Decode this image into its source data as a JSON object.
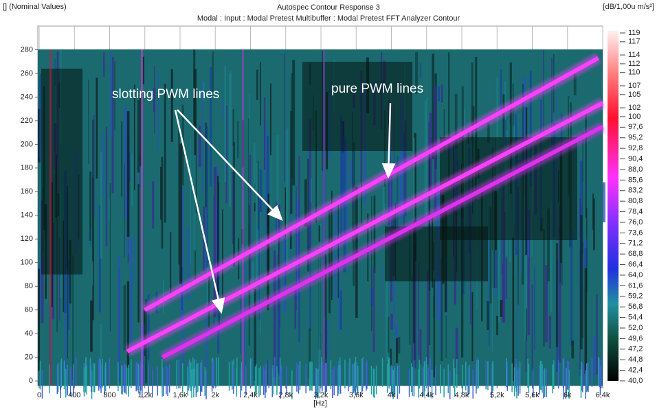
{
  "chart_data": {
    "type": "contour",
    "title": "Autospec Contour Response 3",
    "subtitle": "Modal : Input : Modal Pretest Multibuffer : Modal Pretest FFT Analyzer Contour",
    "y_label": "[] (Nominal Values)",
    "x_label": "[Hz]",
    "colorbar_label": "[dB/1,00u m/s²]",
    "xlim": [
      0,
      6400
    ],
    "ylim": [
      -4,
      300
    ],
    "xticks": [
      0,
      400,
      800,
      {
        "value": 1200,
        "label": "1,2k"
      },
      {
        "value": 1600,
        "label": "1,6k"
      },
      {
        "value": 2000,
        "label": "2k"
      },
      {
        "value": 2400,
        "label": "2,4k"
      },
      {
        "value": 2800,
        "label": "2,8k"
      },
      {
        "value": 3200,
        "label": "3,2k"
      },
      {
        "value": 3600,
        "label": "3,6k"
      },
      {
        "value": 4000,
        "label": "4k"
      },
      {
        "value": 4400,
        "label": "4,4k"
      },
      {
        "value": 4800,
        "label": "4,8k"
      },
      {
        "value": 5200,
        "label": "5,2k"
      },
      {
        "value": 5600,
        "label": "5,6k"
      },
      {
        "value": 6000,
        "label": "6k"
      },
      {
        "value": 6400,
        "label": "6,4k"
      }
    ],
    "yticks": [
      0,
      20,
      40,
      60,
      80,
      100,
      120,
      140,
      160,
      180,
      200,
      220,
      240,
      260,
      280
    ],
    "clim": [
      40,
      119
    ],
    "cticks": [
      119,
      117,
      114,
      112,
      110,
      107,
      105,
      102,
      100,
      {
        "value": 97.6,
        "label": "97,6"
      },
      {
        "value": 95.2,
        "label": "95,2"
      },
      {
        "value": 92.8,
        "label": "92,8"
      },
      {
        "value": 90.4,
        "label": "90,4"
      },
      {
        "value": 88.0,
        "label": "88,0"
      },
      {
        "value": 85.6,
        "label": "85,6"
      },
      {
        "value": 83.2,
        "label": "83,2"
      },
      {
        "value": 80.8,
        "label": "80,8"
      },
      {
        "value": 78.4,
        "label": "78,4"
      },
      {
        "value": 76.0,
        "label": "76,0"
      },
      {
        "value": 73.6,
        "label": "73,6"
      },
      {
        "value": 71.2,
        "label": "71,2"
      },
      {
        "value": 68.8,
        "label": "68,8"
      },
      {
        "value": 66.4,
        "label": "66,4"
      },
      {
        "value": 64.0,
        "label": "64,0"
      },
      {
        "value": 61.6,
        "label": "61,6"
      },
      {
        "value": 59.2,
        "label": "59,2"
      },
      {
        "value": 56.8,
        "label": "56,8"
      },
      {
        "value": 54.4,
        "label": "54,4"
      },
      {
        "value": 52.0,
        "label": "52,0"
      },
      {
        "value": 49.6,
        "label": "49,6"
      },
      {
        "value": 47.2,
        "label": "47,2"
      },
      {
        "value": 44.8,
        "label": "44,8"
      },
      {
        "value": 42.4,
        "label": "42,4"
      },
      {
        "value": 40.0,
        "label": "40,0"
      }
    ],
    "series": [
      {
        "color": "#ff40ff",
        "x": [
          1200,
          6350
        ],
        "values": [
          60,
          273
        ]
      },
      {
        "color": "#ff40ff",
        "x": [
          1000,
          6400
        ],
        "values": [
          25,
          235
        ]
      },
      {
        "color": "#e030f0",
        "x": [
          1400,
          6400
        ],
        "values": [
          20,
          215
        ]
      }
    ],
    "annotations": [
      "slotting PWM lines",
      "pure PWM lines"
    ]
  }
}
